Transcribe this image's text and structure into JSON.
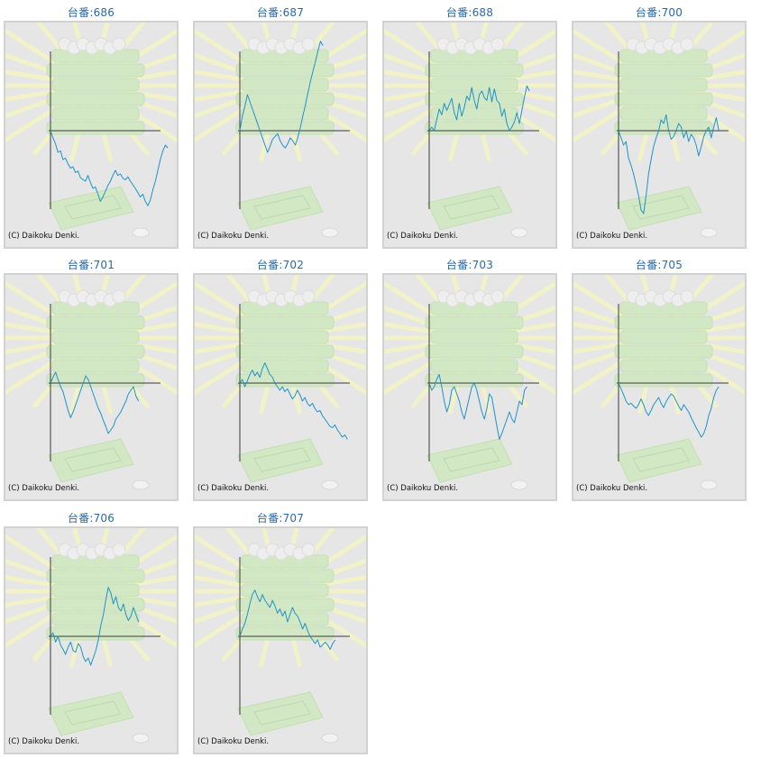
{
  "copyright": "(C) Daikoku Denki.",
  "colors": {
    "line": "#1f93c8",
    "axis": "#3a3a3a",
    "title": "#2a6aa6",
    "background": "#e6e6e6",
    "border": "#d2d2d2",
    "decoration": "#d2e8c5",
    "rays": "#f2f2c8"
  },
  "charts": [
    {
      "title": "台番:686"
    },
    {
      "title": "台番:687"
    },
    {
      "title": "台番:688"
    },
    {
      "title": "台番:700"
    },
    {
      "title": "台番:701"
    },
    {
      "title": "台番:702"
    },
    {
      "title": "台番:703"
    },
    {
      "title": "台番:705"
    },
    {
      "title": "台番:706"
    },
    {
      "title": "台番:707"
    }
  ],
  "chart_data": [
    {
      "type": "line",
      "title": "台番:686",
      "values": [
        0,
        -10,
        -18,
        -30,
        -28,
        -40,
        -38,
        -46,
        -52,
        -50,
        -58,
        -56,
        -65,
        -68,
        -70,
        -62,
        -72,
        -80,
        -78,
        -88,
        -98,
        -92,
        -84,
        -76,
        -70,
        -62,
        -55,
        -62,
        -60,
        -66,
        -68,
        -64,
        -70,
        -75,
        -80,
        -86,
        -92,
        -88,
        -98,
        -104,
        -96,
        -82,
        -70,
        -55,
        -40,
        -28,
        -20,
        -24
      ],
      "ylim": [
        -150,
        150
      ]
    },
    {
      "type": "line",
      "title": "台番:687",
      "values": [
        0,
        20,
        34,
        50,
        40,
        30,
        20,
        10,
        0,
        -10,
        -20,
        -30,
        -22,
        -12,
        -8,
        -4,
        -14,
        -20,
        -24,
        -18,
        -10,
        -14,
        -20,
        -10,
        4,
        20,
        35,
        52,
        68,
        82,
        96,
        110,
        124,
        118
      ],
      "ylim": [
        -150,
        150
      ]
    },
    {
      "type": "line",
      "title": "台番:688",
      "values": [
        0,
        5,
        0,
        15,
        30,
        22,
        38,
        28,
        36,
        45,
        25,
        15,
        38,
        20,
        32,
        48,
        42,
        60,
        42,
        30,
        50,
        55,
        46,
        42,
        60,
        40,
        58,
        42,
        38,
        20,
        30,
        10,
        0,
        5,
        12,
        25,
        10,
        28,
        46,
        62,
        55
      ],
      "ylim": [
        -150,
        150
      ]
    },
    {
      "type": "line",
      "title": "台番:700",
      "values": [
        0,
        -10,
        -20,
        -15,
        -38,
        -48,
        -60,
        -75,
        -90,
        -110,
        -115,
        -90,
        -60,
        -40,
        -22,
        -10,
        0,
        15,
        10,
        22,
        0,
        -12,
        -8,
        0,
        10,
        5,
        -10,
        0,
        -15,
        -5,
        -10,
        -20,
        -35,
        -22,
        -8,
        0,
        5,
        -10,
        5,
        18,
        0
      ],
      "ylim": [
        -150,
        150
      ]
    },
    {
      "type": "line",
      "title": "台番:701",
      "values": [
        0,
        8,
        15,
        5,
        -5,
        -12,
        -25,
        -38,
        -48,
        -40,
        -30,
        -20,
        -10,
        0,
        10,
        5,
        -5,
        -15,
        -25,
        -35,
        -42,
        -52,
        -60,
        -70,
        -65,
        -60,
        -50,
        -45,
        -40,
        -32,
        -25,
        -15,
        -10,
        -5,
        -18,
        -25
      ],
      "ylim": [
        -150,
        150
      ]
    },
    {
      "type": "line",
      "title": "台番:702",
      "values": [
        0,
        5,
        -5,
        3,
        12,
        18,
        10,
        15,
        8,
        20,
        28,
        20,
        12,
        8,
        0,
        -5,
        -10,
        -5,
        -12,
        -8,
        -15,
        -22,
        -18,
        -10,
        -16,
        -25,
        -20,
        -28,
        -32,
        -28,
        -35,
        -40,
        -38,
        -45,
        -50,
        -55,
        -60,
        -62,
        -58,
        -65,
        -70,
        -75,
        -72,
        -78
      ],
      "ylim": [
        -150,
        150
      ]
    },
    {
      "type": "line",
      "title": "台番:703",
      "values": [
        0,
        -10,
        -5,
        5,
        12,
        -5,
        -25,
        -40,
        -30,
        -10,
        -5,
        -15,
        -25,
        -40,
        -50,
        -35,
        -20,
        -5,
        0,
        -10,
        -25,
        -40,
        -50,
        -35,
        -15,
        -20,
        -40,
        -60,
        -78,
        -70,
        -60,
        -50,
        -40,
        -50,
        -55,
        -40,
        -25,
        -30,
        -10,
        -5
      ],
      "ylim": [
        -150,
        150
      ]
    },
    {
      "type": "line",
      "title": "台番:705",
      "values": [
        0,
        -8,
        -16,
        -25,
        -30,
        -28,
        -32,
        -35,
        -30,
        -22,
        -30,
        -40,
        -45,
        -38,
        -30,
        -25,
        -20,
        -28,
        -34,
        -26,
        -20,
        -15,
        -18,
        -25,
        -32,
        -38,
        -30,
        -35,
        -40,
        -48,
        -55,
        -62,
        -68,
        -75,
        -70,
        -60,
        -45,
        -35,
        -20,
        -10,
        -5
      ],
      "ylim": [
        -150,
        150
      ]
    },
    {
      "type": "line",
      "title": "台番:706",
      "values": [
        0,
        5,
        -8,
        0,
        -12,
        -18,
        -25,
        -15,
        -8,
        -20,
        -22,
        -10,
        -15,
        -28,
        -35,
        -30,
        -40,
        -30,
        -20,
        -5,
        15,
        30,
        50,
        68,
        60,
        45,
        55,
        40,
        35,
        45,
        30,
        22,
        28,
        40,
        30,
        20
      ],
      "ylim": [
        -150,
        150
      ]
    },
    {
      "type": "line",
      "title": "台番:707",
      "values": [
        0,
        10,
        18,
        30,
        45,
        58,
        64,
        55,
        48,
        58,
        50,
        45,
        40,
        50,
        42,
        32,
        38,
        28,
        35,
        20,
        30,
        40,
        32,
        28,
        20,
        10,
        18,
        8,
        0,
        -5,
        -10,
        -5,
        -15,
        -12,
        -8,
        -12,
        -18,
        -10,
        -5
      ],
      "ylim": [
        -150,
        150
      ]
    }
  ]
}
